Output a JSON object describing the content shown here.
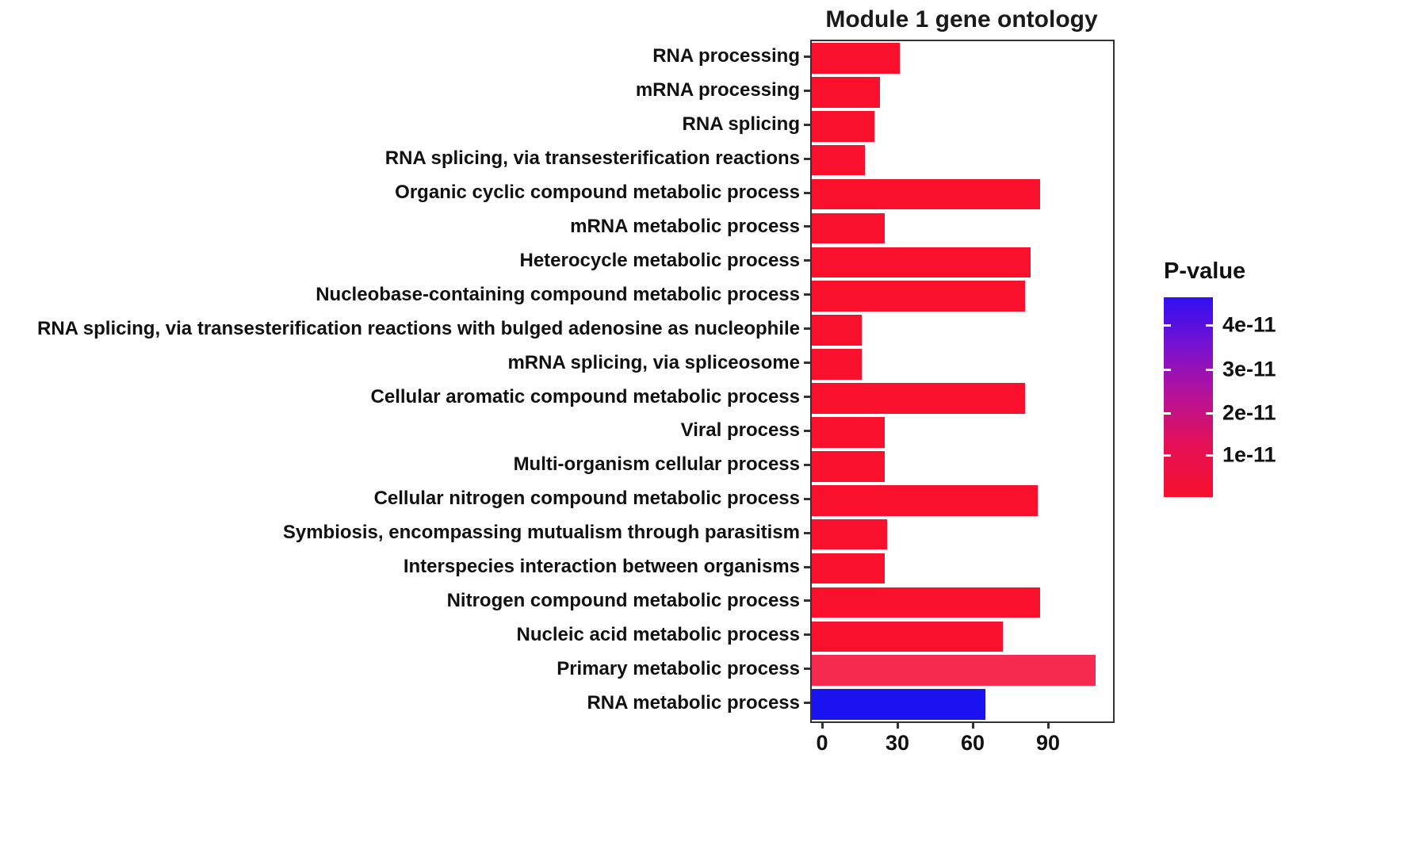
{
  "title": "Module 1 gene ontology",
  "chart_data": {
    "type": "bar",
    "orientation": "horizontal",
    "title": "Module 1 gene ontology",
    "categories": [
      "RNA processing",
      "mRNA processing",
      "RNA splicing",
      "RNA splicing, via transesterification reactions",
      "Organic cyclic compound metabolic process",
      "mRNA metabolic process",
      "Heterocycle metabolic process",
      "Nucleobase-containing compound metabolic process",
      "RNA splicing, via transesterification reactions with bulged adenosine as nucleophile",
      "mRNA splicing, via spliceosome",
      "Cellular aromatic compound metabolic process",
      "Viral process",
      "Multi-organism cellular process",
      "Cellular nitrogen compound metabolic process",
      "Symbiosis, encompassing mutualism through parasitism",
      "Interspecies interaction between organisms",
      "Nitrogen compound metabolic process",
      "Nucleic acid metabolic process",
      "Primary metabolic process",
      "RNA metabolic process"
    ],
    "values": [
      35,
      27,
      25,
      21,
      91,
      29,
      87,
      85,
      20,
      20,
      85,
      29,
      29,
      90,
      30,
      29,
      91,
      76,
      113,
      69
    ],
    "bar_colors": [
      "#f8102c",
      "#f8102c",
      "#f8102c",
      "#f8102c",
      "#f8102c",
      "#f8102c",
      "#f8102c",
      "#f8102c",
      "#f8102c",
      "#f8102c",
      "#f8102c",
      "#f8102c",
      "#f8102c",
      "#f8102c",
      "#f8102c",
      "#f8102c",
      "#f8102c",
      "#f8102c",
      "#f72a50",
      "#1b13ef"
    ],
    "xlabel": "",
    "ylabel": "",
    "xlim": [
      0,
      120
    ],
    "x_ticks": [
      0,
      30,
      60,
      90
    ],
    "grid": false,
    "legend": {
      "title": "P-value",
      "position": "right",
      "tick_labels": [
        "4e-11",
        "3e-11",
        "2e-11",
        "1e-11"
      ],
      "gradient_colors": [
        "#2f10f2",
        "#7a12cf",
        "#b81295",
        "#e61154",
        "#f70f2d"
      ],
      "low_color": "#f8102c",
      "high_color": "#2f10f2"
    }
  }
}
